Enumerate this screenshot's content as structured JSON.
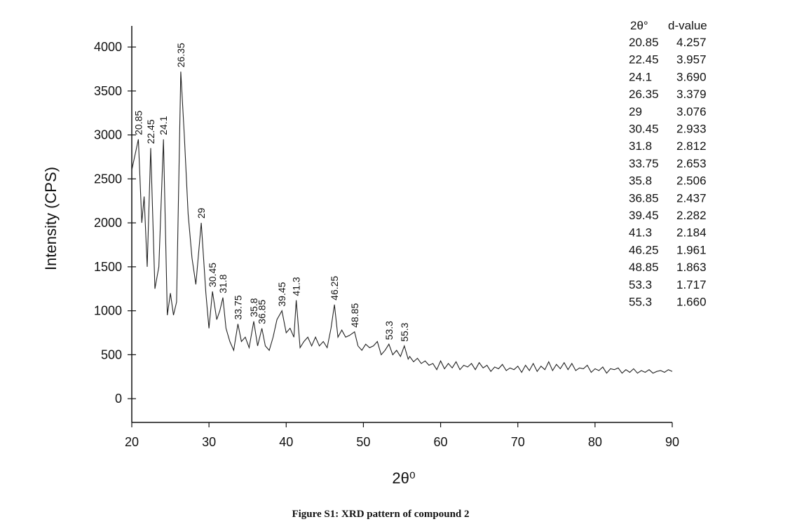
{
  "chart_data": {
    "type": "line",
    "title": "Figure S1: XRD pattern of compound 2",
    "x_label": "2θ⁰",
    "y_label": "Intensity (CPS)",
    "color": "#222222",
    "xlim": [
      20,
      90
    ],
    "ylim": [
      -270,
      4240
    ],
    "xticks": [
      20,
      30,
      40,
      50,
      60,
      70,
      80,
      90
    ],
    "yticks": [
      0,
      500,
      1000,
      1500,
      2000,
      2500,
      3000,
      3500,
      4000
    ],
    "x": [
      20.0,
      20.85,
      21.3,
      21.6,
      22.0,
      22.45,
      23.0,
      23.5,
      24.1,
      24.6,
      25.0,
      25.4,
      25.8,
      26.35,
      26.8,
      27.3,
      27.8,
      28.3,
      29.0,
      29.6,
      30.0,
      30.45,
      31.0,
      31.4,
      31.8,
      32.2,
      32.7,
      33.2,
      33.75,
      34.2,
      34.7,
      35.2,
      35.8,
      36.3,
      36.85,
      37.3,
      37.8,
      38.3,
      38.8,
      39.45,
      40.0,
      40.5,
      41.0,
      41.3,
      41.8,
      42.3,
      42.8,
      43.3,
      43.8,
      44.3,
      44.8,
      45.3,
      45.8,
      46.25,
      46.7,
      47.2,
      47.7,
      48.2,
      48.85,
      49.3,
      49.8,
      50.3,
      50.8,
      51.3,
      51.8,
      52.3,
      52.8,
      53.3,
      53.8,
      54.3,
      54.8,
      55.3,
      55.8,
      56.0,
      56.5,
      57.0,
      57.5,
      58.0,
      58.5,
      59.0,
      59.5,
      60.0,
      60.5,
      61.0,
      61.5,
      62.0,
      62.5,
      63.0,
      63.5,
      64.0,
      64.5,
      65.0,
      65.5,
      66.0,
      66.5,
      67.0,
      67.5,
      68.0,
      68.5,
      69.0,
      69.5,
      70.0,
      70.5,
      71.0,
      71.5,
      72.0,
      72.5,
      73.0,
      73.5,
      74.0,
      74.5,
      75.0,
      75.5,
      76.0,
      76.5,
      77.0,
      77.5,
      78.0,
      78.5,
      79.0,
      79.5,
      80.0,
      80.5,
      81.0,
      81.5,
      82.0,
      82.5,
      83.0,
      83.5,
      84.0,
      84.5,
      85.0,
      85.5,
      86.0,
      86.5,
      87.0,
      87.5,
      88.0,
      88.5,
      89.0,
      89.5,
      90.0
    ],
    "y": [
      2600,
      2950,
      2000,
      2300,
      1500,
      2850,
      1250,
      1500,
      2950,
      950,
      1200,
      950,
      1100,
      3720,
      3000,
      2100,
      1600,
      1300,
      2000,
      1200,
      800,
      1220,
      900,
      1000,
      1150,
      800,
      650,
      550,
      850,
      650,
      700,
      580,
      880,
      600,
      800,
      600,
      550,
      700,
      900,
      1000,
      750,
      800,
      700,
      1120,
      580,
      650,
      700,
      600,
      700,
      600,
      650,
      580,
      800,
      1070,
      700,
      780,
      700,
      720,
      760,
      600,
      550,
      620,
      580,
      600,
      650,
      500,
      550,
      620,
      500,
      550,
      480,
      600,
      450,
      480,
      420,
      460,
      400,
      430,
      380,
      400,
      330,
      430,
      340,
      400,
      350,
      420,
      330,
      380,
      360,
      400,
      330,
      410,
      350,
      380,
      310,
      360,
      340,
      390,
      320,
      350,
      330,
      370,
      300,
      380,
      320,
      400,
      310,
      370,
      330,
      420,
      320,
      390,
      340,
      410,
      330,
      400,
      320,
      350,
      340,
      380,
      300,
      340,
      320,
      360,
      290,
      340,
      330,
      350,
      290,
      330,
      300,
      340,
      290,
      320,
      300,
      330,
      290,
      310,
      320,
      300,
      330,
      310
    ],
    "peaks": [
      {
        "x": 20.85,
        "y": 2950
      },
      {
        "x": 22.45,
        "y": 2850
      },
      {
        "x": 24.1,
        "y": 2950
      },
      {
        "x": 26.35,
        "y": 3720
      },
      {
        "x": 29,
        "y": 2000
      },
      {
        "x": 30.45,
        "y": 1220
      },
      {
        "x": 31.8,
        "y": 1150
      },
      {
        "x": 33.75,
        "y": 850
      },
      {
        "x": 35.8,
        "y": 880
      },
      {
        "x": 36.85,
        "y": 800
      },
      {
        "x": 39.45,
        "y": 1000
      },
      {
        "x": 41.3,
        "y": 1120
      },
      {
        "x": 46.25,
        "y": 1070
      },
      {
        "x": 48.85,
        "y": 760
      },
      {
        "x": 53.3,
        "y": 620
      },
      {
        "x": 55.3,
        "y": 600
      }
    ],
    "table": {
      "header": [
        "2θ°",
        "d-value"
      ],
      "rows": [
        [
          "20.85",
          "4.257"
        ],
        [
          "22.45",
          "3.957"
        ],
        [
          "24.1",
          "3.690"
        ],
        [
          "26.35",
          "3.379"
        ],
        [
          "29",
          "3.076"
        ],
        [
          "30.45",
          "2.933"
        ],
        [
          "31.8",
          "2.812"
        ],
        [
          "33.75",
          "2.653"
        ],
        [
          "35.8",
          "2.506"
        ],
        [
          "36.85",
          "2.437"
        ],
        [
          "39.45",
          "2.282"
        ],
        [
          "41.3",
          "2.184"
        ],
        [
          "46.25",
          "1.961"
        ],
        [
          "48.85",
          "1.863"
        ],
        [
          "53.3",
          "1.717"
        ],
        [
          "55.3",
          "1.660"
        ]
      ]
    }
  }
}
